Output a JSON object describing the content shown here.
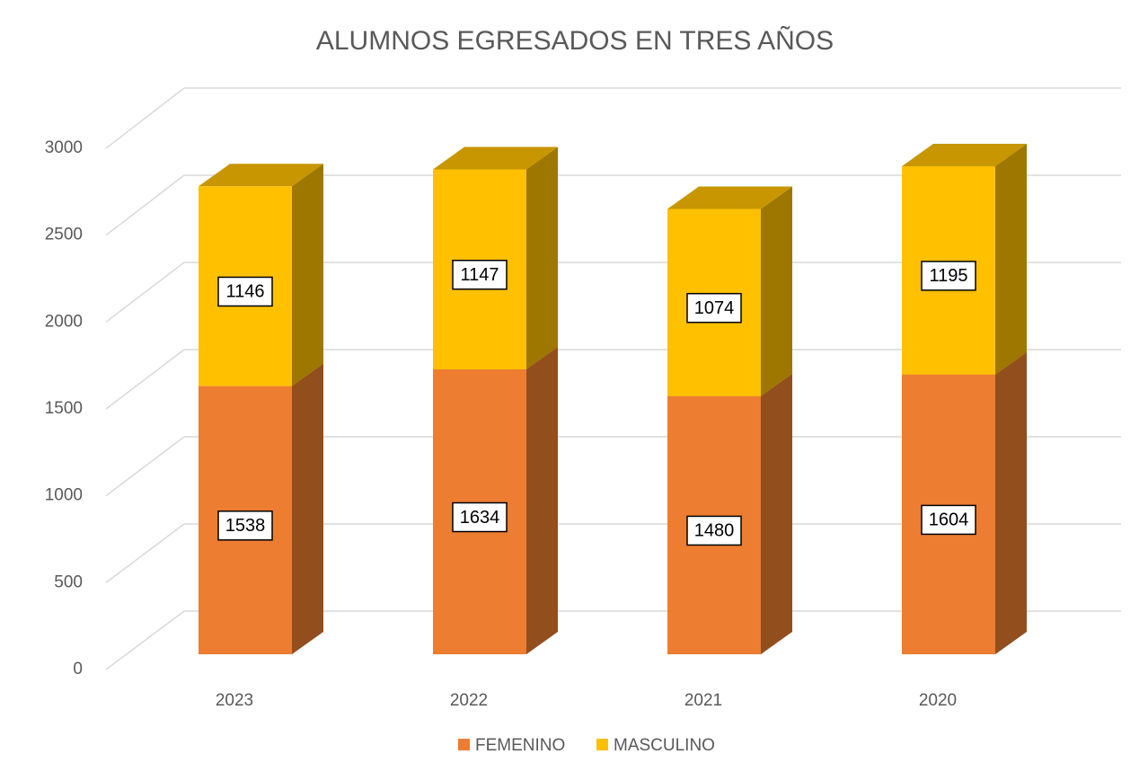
{
  "chart_data": {
    "type": "bar3d_stacked",
    "title": "ALUMNOS EGRESADOS EN TRES AÑOS",
    "categories": [
      "2023",
      "2022",
      "2021",
      "2020"
    ],
    "series": [
      {
        "name": "FEMENINO",
        "color": "#ED7D31",
        "values": [
          1538,
          1634,
          1480,
          1604
        ]
      },
      {
        "name": "MASCULINO",
        "color": "#FFC000",
        "values": [
          1146,
          1147,
          1074,
          1195
        ]
      }
    ],
    "ylim": [
      0,
      3000
    ],
    "yticks": [
      0,
      500,
      1000,
      1500,
      2000,
      2500,
      3000
    ],
    "grid": true,
    "legend": "bottom"
  }
}
